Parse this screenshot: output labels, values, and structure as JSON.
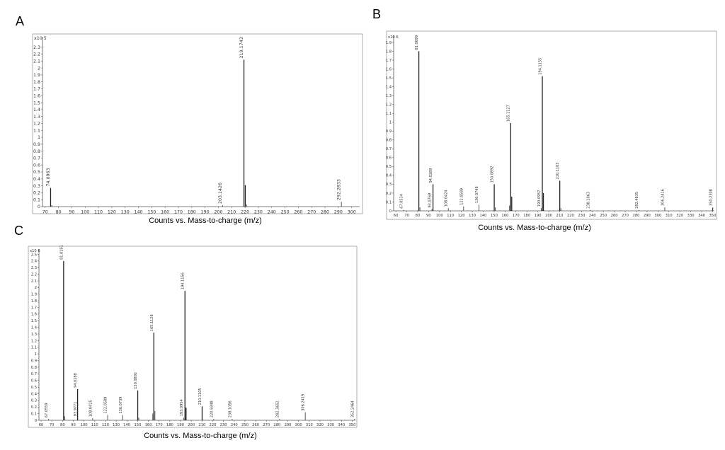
{
  "panels": [
    {
      "letter": "A",
      "xlabel": "Counts vs. Mass-to-charge (m/z)"
    },
    {
      "letter": "B",
      "xlabel": "Counts vs. Mass-to-charge (m/z)"
    },
    {
      "letter": "C",
      "xlabel": "Counts vs. Mass-to-charge (m/z)"
    }
  ],
  "chart_data": [
    {
      "type": "bar",
      "title": "",
      "xlabel": "Counts vs. Mass-to-charge (m/z)",
      "ylabel": "",
      "yscale_label": "x10 5",
      "xlim": [
        68,
        306
      ],
      "ylim": [
        0,
        2.45
      ],
      "xticks": [
        70,
        80,
        90,
        100,
        110,
        120,
        130,
        140,
        150,
        160,
        170,
        180,
        190,
        200,
        210,
        220,
        230,
        240,
        250,
        260,
        270,
        280,
        290,
        300
      ],
      "xtick_labels": [
        "70",
        "80",
        "90",
        "100",
        "110",
        "120",
        "130",
        "140",
        "150",
        "160",
        "170",
        "180",
        "190",
        "200",
        "210",
        "220",
        "230",
        "240",
        "250",
        "260",
        "270",
        "280",
        "290",
        "300"
      ],
      "yticks": [
        0,
        0.1,
        0.2,
        0.3,
        0.4,
        0.5,
        0.6,
        0.7,
        0.8,
        0.9,
        1,
        1.1,
        1.2,
        1.3,
        1.4,
        1.5,
        1.6,
        1.7,
        1.8,
        1.9,
        2,
        2.1,
        2.2,
        2.3
      ],
      "ytick_labels": [
        "0",
        "0.1",
        "0.2",
        "0.3",
        "0.4",
        "0.5",
        "0.6",
        "0.7",
        "0.8",
        "0.9",
        "1",
        "1.1",
        "1.2",
        "1.3",
        "1.4",
        "1.5",
        "1.6",
        "1.7",
        "1.8",
        "1.9",
        "2",
        "2.1",
        "2.2",
        "2.3"
      ],
      "peaks": [
        {
          "mz": 74.0963,
          "value": 0.27,
          "label": "74.0963"
        },
        {
          "mz": 75.0,
          "value": 0.02,
          "label": ""
        },
        {
          "mz": 203.1426,
          "value": 0.02,
          "label": "203.1426"
        },
        {
          "mz": 219.1743,
          "value": 2.12,
          "label": "219.1743"
        },
        {
          "mz": 220.18,
          "value": 0.31,
          "label": ""
        },
        {
          "mz": 221.18,
          "value": 0.03,
          "label": ""
        },
        {
          "mz": 292.2833,
          "value": 0.07,
          "label": "292.2833"
        }
      ]
    },
    {
      "type": "bar",
      "title": "",
      "xlabel": "Counts vs. Mass-to-charge (m/z)",
      "ylabel": "",
      "yscale_label": "x10 6",
      "xlim": [
        58,
        351
      ],
      "ylim": [
        0,
        1.98
      ],
      "xticks": [
        60,
        70,
        80,
        90,
        100,
        110,
        120,
        130,
        140,
        150,
        160,
        170,
        180,
        190,
        200,
        210,
        220,
        230,
        240,
        250,
        260,
        270,
        280,
        290,
        300,
        310,
        320,
        330,
        340,
        350
      ],
      "xtick_labels": [
        "60",
        "70",
        "80",
        "90",
        "100",
        "110",
        "120",
        "130",
        "140",
        "150",
        "160",
        "170",
        "180",
        "190",
        "200",
        "210",
        "220",
        "230",
        "240",
        "250",
        "260",
        "270",
        "280",
        "290",
        "300",
        "310",
        "320",
        "330",
        "340",
        "350"
      ],
      "yticks": [
        0,
        0.1,
        0.2,
        0.3,
        0.4,
        0.5,
        0.6,
        0.7,
        0.8,
        0.9,
        1,
        1.1,
        1.2,
        1.3,
        1.4,
        1.5,
        1.6,
        1.7,
        1.8,
        1.9
      ],
      "ytick_labels": [
        "0",
        "0.1",
        "0.2",
        "0.3",
        "0.4",
        "0.5",
        "0.6",
        "0.7",
        "0.8",
        "0.9",
        "1",
        "1.1",
        "1.2",
        "1.3",
        "1.4",
        "1.5",
        "1.6",
        "1.7",
        "1.8",
        "1.9"
      ],
      "peaks": [
        {
          "mz": 67.0534,
          "value": 0.01,
          "label": "67.0534"
        },
        {
          "mz": 81.0699,
          "value": 1.8,
          "label": "81.0699"
        },
        {
          "mz": 82.07,
          "value": 0.04,
          "label": ""
        },
        {
          "mz": 93.0769,
          "value": 0.02,
          "label": "93.0769"
        },
        {
          "mz": 94.0289,
          "value": 0.3,
          "label": "94.0289"
        },
        {
          "mz": 108.0424,
          "value": 0.03,
          "label": "108.0424"
        },
        {
          "mz": 122.0589,
          "value": 0.05,
          "label": "122.0589"
        },
        {
          "mz": 136.0748,
          "value": 0.07,
          "label": "136.0748"
        },
        {
          "mz": 150.0892,
          "value": 0.3,
          "label": "150.0892"
        },
        {
          "mz": 151.09,
          "value": 0.04,
          "label": ""
        },
        {
          "mz": 165.1127,
          "value": 0.99,
          "label": "165.1127"
        },
        {
          "mz": 166.11,
          "value": 0.16,
          "label": ""
        },
        {
          "mz": 164.11,
          "value": 0.06,
          "label": ""
        },
        {
          "mz": 193.0957,
          "value": 0.03,
          "label": "193.0957"
        },
        {
          "mz": 194.1155,
          "value": 1.52,
          "label": "194.1155"
        },
        {
          "mz": 195.12,
          "value": 0.2,
          "label": ""
        },
        {
          "mz": 210.1103,
          "value": 0.34,
          "label": "210.1103"
        },
        {
          "mz": 211.11,
          "value": 0.03,
          "label": ""
        },
        {
          "mz": 238.1063,
          "value": 0.01,
          "label": "238.1063"
        },
        {
          "mz": 282.4835,
          "value": 0.01,
          "label": "282.4835"
        },
        {
          "mz": 306.2416,
          "value": 0.04,
          "label": "306.2416"
        },
        {
          "mz": 350.2308,
          "value": 0.04,
          "label": "350.2308"
        },
        {
          "mz": 349.9,
          "value": 0.03,
          "label": ""
        }
      ]
    },
    {
      "type": "bar",
      "title": "",
      "xlabel": "Counts vs. Mass-to-charge (m/z)",
      "ylabel": "",
      "yscale_label": "x10 6",
      "xlim": [
        58,
        353
      ],
      "ylim": [
        0,
        2.58
      ],
      "xticks": [
        60,
        70,
        80,
        90,
        100,
        110,
        120,
        130,
        140,
        150,
        160,
        170,
        180,
        190,
        200,
        210,
        220,
        230,
        240,
        250,
        260,
        270,
        280,
        290,
        300,
        310,
        320,
        330,
        340,
        350
      ],
      "xtick_labels": [
        "60",
        "70",
        "80",
        "90",
        "100",
        "110",
        "120",
        "130",
        "140",
        "150",
        "160",
        "170",
        "180",
        "190",
        "200",
        "210",
        "220",
        "230",
        "240",
        "250",
        "260",
        "270",
        "280",
        "290",
        "300",
        "310",
        "320",
        "330",
        "340",
        "350"
      ],
      "yticks": [
        0,
        0.1,
        0.2,
        0.3,
        0.4,
        0.5,
        0.6,
        0.7,
        0.8,
        0.9,
        1,
        1.1,
        1.2,
        1.3,
        1.4,
        1.5,
        1.6,
        1.7,
        1.8,
        1.9,
        2,
        2.1,
        2.2,
        2.3,
        2.4,
        2.5
      ],
      "ytick_labels": [
        "0",
        "0.1",
        "0.2",
        "0.3",
        "0.4",
        "0.5",
        "0.6",
        "0.7",
        "0.8",
        "0.9",
        "1",
        "1.1",
        "1.2",
        "1.3",
        "1.4",
        "1.5",
        "1.6",
        "1.7",
        "1.8",
        "1.9",
        "2",
        "2.1",
        "2.2",
        "2.3",
        "2.4",
        "2.5"
      ],
      "peaks": [
        {
          "mz": 67.0559,
          "value": 0.02,
          "label": "67.0559"
        },
        {
          "mz": 81.0191,
          "value": 2.4,
          "label": "81.0191"
        },
        {
          "mz": 82.0,
          "value": 0.06,
          "label": ""
        },
        {
          "mz": 93.9771,
          "value": 0.04,
          "label": "93.9771"
        },
        {
          "mz": 94.0288,
          "value": 0.47,
          "label": "94.0288"
        },
        {
          "mz": 108.0425,
          "value": 0.03,
          "label": "108.0425"
        },
        {
          "mz": 122.0589,
          "value": 0.08,
          "label": "122.0589"
        },
        {
          "mz": 136.0739,
          "value": 0.08,
          "label": "136.0739"
        },
        {
          "mz": 150.0892,
          "value": 0.45,
          "label": "150.0892"
        },
        {
          "mz": 151.09,
          "value": 0.04,
          "label": ""
        },
        {
          "mz": 165.1128,
          "value": 1.32,
          "label": "165.1128"
        },
        {
          "mz": 166.11,
          "value": 0.14,
          "label": ""
        },
        {
          "mz": 164.11,
          "value": 0.1,
          "label": ""
        },
        {
          "mz": 193.0954,
          "value": 0.04,
          "label": "193.0954"
        },
        {
          "mz": 194.1156,
          "value": 1.95,
          "label": "194.1156"
        },
        {
          "mz": 195.12,
          "value": 0.19,
          "label": ""
        },
        {
          "mz": 210.1105,
          "value": 0.21,
          "label": "210.1105"
        },
        {
          "mz": 220.9348,
          "value": 0.02,
          "label": "220.9348"
        },
        {
          "mz": 238.1056,
          "value": 0.02,
          "label": "238.1056"
        },
        {
          "mz": 282.3652,
          "value": 0.02,
          "label": "282.3652"
        },
        {
          "mz": 306.2419,
          "value": 0.12,
          "label": "306.2419"
        },
        {
          "mz": 352.2464,
          "value": 0.02,
          "label": "352.2464"
        }
      ]
    }
  ]
}
